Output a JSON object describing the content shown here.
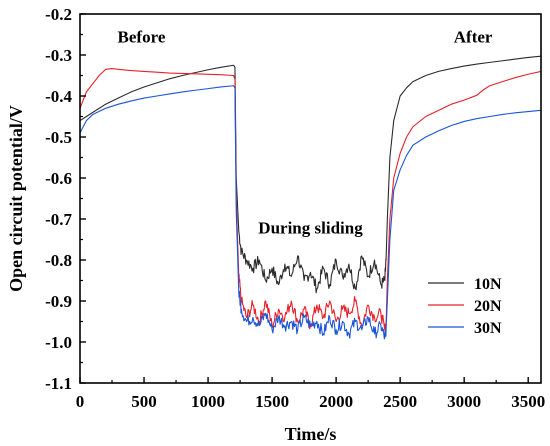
{
  "chart_data": {
    "type": "line",
    "xlabel": "Time/s",
    "ylabel": "Open circuit potential/V",
    "xlim": [
      0,
      3600
    ],
    "ylim": [
      -1.1,
      -0.2
    ],
    "xticks": [
      0,
      500,
      1000,
      1500,
      2000,
      2500,
      3000,
      3500
    ],
    "xtick_labels": [
      "0",
      "500",
      "1000",
      "1500",
      "2000",
      "2500",
      "3000",
      "3500"
    ],
    "yticks": [
      -0.2,
      -0.3,
      -0.4,
      -0.5,
      -0.6,
      -0.7,
      -0.8,
      -0.9,
      -1.0,
      -1.1
    ],
    "ytick_labels": [
      "-0.2",
      "-0.3",
      "-0.4",
      "-0.5",
      "-0.6",
      "-0.7",
      "-0.8",
      "-0.9",
      "-1.0",
      "-1.1"
    ],
    "grid": false,
    "legend_position": "lower-right",
    "annotations": [
      {
        "text": "Before",
        "x": 480,
        "y": -0.27
      },
      {
        "text": "During sliding",
        "x": 1800,
        "y": -0.735
      },
      {
        "text": "After",
        "x": 3070,
        "y": -0.27
      }
    ],
    "series": [
      {
        "name": "10N",
        "color": "#2b2b2b",
        "x": [
          0,
          100,
          200,
          300,
          400,
          500,
          600,
          700,
          800,
          900,
          1000,
          1100,
          1200,
          1210,
          1220,
          1240,
          1260,
          1300,
          1350,
          1400,
          1450,
          1500,
          1550,
          1600,
          1650,
          1700,
          1750,
          1800,
          1850,
          1900,
          1950,
          2000,
          2050,
          2100,
          2150,
          2200,
          2250,
          2300,
          2350,
          2380,
          2390,
          2400,
          2420,
          2450,
          2500,
          2550,
          2600,
          2700,
          2800,
          2900,
          3000,
          3100,
          3200,
          3300,
          3400,
          3500,
          3600
        ],
        "y": [
          -0.46,
          -0.44,
          -0.42,
          -0.405,
          -0.39,
          -0.378,
          -0.368,
          -0.358,
          -0.35,
          -0.343,
          -0.336,
          -0.33,
          -0.325,
          -0.33,
          -0.6,
          -0.73,
          -0.78,
          -0.8,
          -0.82,
          -0.8,
          -0.85,
          -0.82,
          -0.86,
          -0.81,
          -0.84,
          -0.79,
          -0.85,
          -0.83,
          -0.87,
          -0.82,
          -0.86,
          -0.8,
          -0.84,
          -0.81,
          -0.87,
          -0.79,
          -0.84,
          -0.8,
          -0.86,
          -0.85,
          -0.8,
          -0.7,
          -0.55,
          -0.46,
          -0.4,
          -0.38,
          -0.365,
          -0.35,
          -0.34,
          -0.333,
          -0.327,
          -0.322,
          -0.318,
          -0.314,
          -0.31,
          -0.306,
          -0.303
        ]
      },
      {
        "name": "20N",
        "color": "#e8202a",
        "x": [
          0,
          50,
          100,
          150,
          200,
          250,
          300,
          400,
          500,
          600,
          700,
          800,
          900,
          1000,
          1100,
          1200,
          1210,
          1220,
          1240,
          1260,
          1300,
          1350,
          1400,
          1450,
          1500,
          1550,
          1600,
          1650,
          1700,
          1750,
          1800,
          1850,
          1900,
          1950,
          2000,
          2050,
          2100,
          2150,
          2200,
          2250,
          2300,
          2350,
          2380,
          2390,
          2400,
          2420,
          2450,
          2500,
          2550,
          2600,
          2700,
          2800,
          2900,
          3000,
          3100,
          3150,
          3200,
          3300,
          3400,
          3500,
          3600
        ],
        "y": [
          -0.43,
          -0.39,
          -0.37,
          -0.35,
          -0.335,
          -0.333,
          -0.335,
          -0.338,
          -0.34,
          -0.342,
          -0.344,
          -0.345,
          -0.346,
          -0.347,
          -0.348,
          -0.35,
          -0.36,
          -0.65,
          -0.84,
          -0.9,
          -0.94,
          -0.91,
          -0.95,
          -0.9,
          -0.96,
          -0.92,
          -0.94,
          -0.9,
          -0.95,
          -0.92,
          -0.96,
          -0.91,
          -0.94,
          -0.9,
          -0.95,
          -0.92,
          -0.93,
          -0.9,
          -0.96,
          -0.91,
          -0.94,
          -0.93,
          -0.97,
          -0.96,
          -0.85,
          -0.7,
          -0.6,
          -0.54,
          -0.5,
          -0.475,
          -0.45,
          -0.435,
          -0.42,
          -0.41,
          -0.398,
          -0.385,
          -0.375,
          -0.365,
          -0.355,
          -0.347,
          -0.34
        ]
      },
      {
        "name": "30N",
        "color": "#1a55d8",
        "x": [
          0,
          50,
          100,
          200,
          300,
          400,
          500,
          600,
          700,
          800,
          900,
          1000,
          1100,
          1200,
          1210,
          1220,
          1240,
          1260,
          1300,
          1350,
          1400,
          1450,
          1500,
          1550,
          1600,
          1650,
          1700,
          1750,
          1800,
          1850,
          1900,
          1950,
          2000,
          2050,
          2100,
          2150,
          2200,
          2250,
          2300,
          2350,
          2380,
          2390,
          2400,
          2420,
          2450,
          2500,
          2550,
          2600,
          2700,
          2800,
          2900,
          3000,
          3100,
          3200,
          3300,
          3400,
          3500,
          3600
        ],
        "y": [
          -0.49,
          -0.46,
          -0.445,
          -0.43,
          -0.42,
          -0.412,
          -0.405,
          -0.4,
          -0.395,
          -0.39,
          -0.386,
          -0.382,
          -0.378,
          -0.375,
          -0.38,
          -0.68,
          -0.88,
          -0.92,
          -0.95,
          -0.94,
          -0.96,
          -0.93,
          -0.97,
          -0.94,
          -0.96,
          -0.95,
          -0.97,
          -0.94,
          -0.96,
          -0.95,
          -0.98,
          -0.94,
          -0.97,
          -0.95,
          -0.98,
          -0.95,
          -0.97,
          -0.94,
          -0.98,
          -0.96,
          -0.99,
          -0.97,
          -0.9,
          -0.75,
          -0.63,
          -0.58,
          -0.545,
          -0.52,
          -0.5,
          -0.485,
          -0.472,
          -0.462,
          -0.455,
          -0.45,
          -0.445,
          -0.441,
          -0.438,
          -0.435
        ]
      }
    ]
  }
}
